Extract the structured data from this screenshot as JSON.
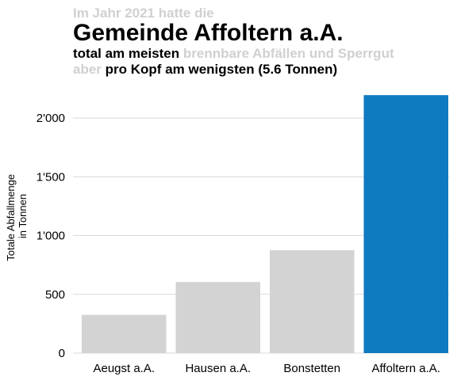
{
  "header": {
    "pre_title": "Im Jahr 2021 hatte die",
    "title": "Gemeinde Affoltern a.A.",
    "line1_bold": "total am meisten",
    "line1_gray": "brennbare Abfällen und Sperrgut",
    "line2_gray": "aber",
    "line2_bold": "pro Kopf am wenigsten (5.6 Tonnen)"
  },
  "colors": {
    "accent": "#0e7ac0",
    "bar_gray": "#d3d3d3",
    "pre_title_gray": "#d0d0d0",
    "grid": "#d9d9d9"
  },
  "chart_data": {
    "type": "bar",
    "categories": [
      "Aeugst a.A.",
      "Hausen a.A.",
      "Bonstetten",
      "Affoltern a.A."
    ],
    "values": [
      325,
      605,
      875,
      2195
    ],
    "highlight_index": 3,
    "ylabel_lines": [
      "Totale Abfallmenge",
      "in Tonnen"
    ],
    "yticks": [
      0,
      500,
      1000,
      1500,
      2000
    ],
    "ytick_labels": [
      "0",
      "500",
      "1'000",
      "1'500",
      "2'000"
    ],
    "ylim": [
      0,
      2250
    ],
    "grid": true
  }
}
